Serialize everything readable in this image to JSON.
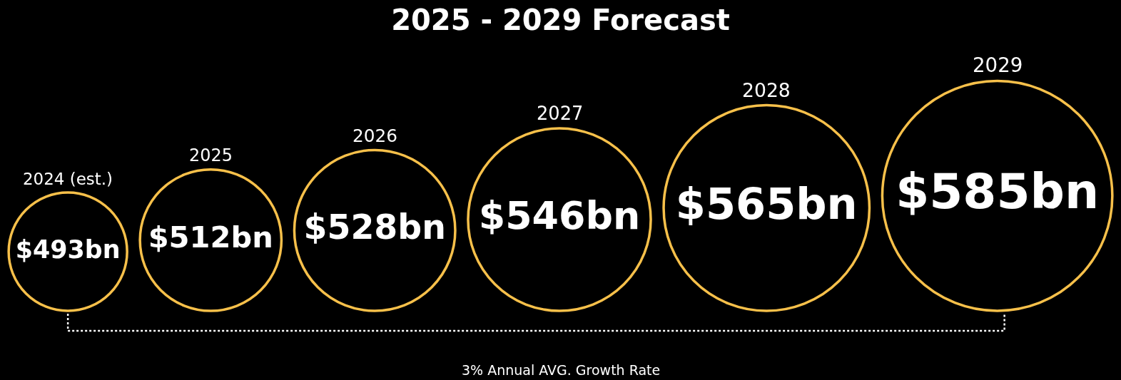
{
  "chart_data": {
    "type": "other",
    "title": "2025 - 2029 Forecast",
    "categories": [
      "2024 (est.)",
      "2025",
      "2026",
      "2027",
      "2028",
      "2029"
    ],
    "values": [
      493,
      512,
      528,
      546,
      565,
      585
    ],
    "value_labels": [
      "$493bn",
      "$512bn",
      "$528bn",
      "$546bn",
      "$565bn",
      "$585bn"
    ],
    "color": "#f7c04a",
    "annotations": [
      "3% Annual AVG. Growth Rate"
    ]
  }
}
